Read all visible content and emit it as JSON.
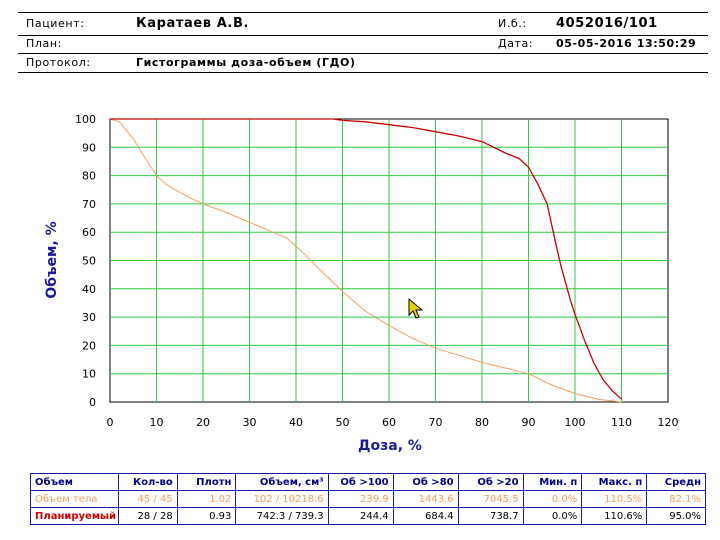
{
  "header": {
    "patient_label": "Пациент:",
    "patient_value": "Каратаев А.В.",
    "id_label": "И.б.:",
    "id_value": "4052016/101",
    "plan_label": "План:",
    "date_label": "Дата:",
    "date_value": "05-05-2016 13:50:29",
    "protocol_label": "Протокол:",
    "protocol_value": "Гистограммы доза-объем (ГДО)"
  },
  "chart_data": {
    "type": "line",
    "xlabel": "Доза, %",
    "ylabel": "Объем, %",
    "xlim": [
      0,
      120
    ],
    "ylim": [
      0,
      100
    ],
    "xticks": [
      0,
      10,
      20,
      30,
      40,
      50,
      60,
      70,
      80,
      90,
      100,
      110,
      120
    ],
    "yticks": [
      0,
      10,
      20,
      30,
      40,
      50,
      60,
      70,
      80,
      90,
      100
    ],
    "grid": true,
    "series": [
      {
        "color": "#f2a060",
        "x": [
          0,
          2,
          5,
          8,
          10,
          12,
          15,
          18,
          20,
          25,
          30,
          35,
          38,
          40,
          42,
          45,
          50,
          55,
          60,
          65,
          70,
          75,
          80,
          85,
          90,
          95,
          100,
          105,
          110
        ],
        "y": [
          100,
          99,
          93,
          85,
          80,
          77,
          74,
          71.5,
          70,
          67,
          63.5,
          60,
          58,
          55,
          52,
          47,
          39,
          32,
          27,
          22.5,
          19,
          16.5,
          14,
          12,
          10,
          6,
          3,
          1,
          0
        ]
      },
      {
        "color": "#cc0000",
        "x": [
          0,
          10,
          20,
          30,
          40,
          48,
          50,
          55,
          60,
          65,
          70,
          75,
          80,
          85,
          88,
          90,
          92,
          94,
          96,
          97,
          98,
          99,
          100,
          102,
          104,
          106,
          108,
          110
        ],
        "y": [
          100,
          100,
          100,
          100,
          100,
          100,
          99.5,
          99,
          98,
          97,
          95.5,
          94,
          92,
          88,
          86,
          83,
          77,
          70,
          55,
          48,
          42,
          36,
          31,
          22,
          14,
          8,
          4,
          1
        ]
      }
    ]
  },
  "table": {
    "headers": [
      "Объем",
      "Кол-во",
      "Плотн",
      "Объем, см³",
      "Об >100",
      "Об >80",
      "Об >20",
      "Мин. п",
      "Макс. п",
      "Средн"
    ],
    "rows": [
      [
        "Объем тела",
        "45 / 45",
        "1.02",
        "102 / 10218.6",
        "239.9",
        "1443.6",
        "7045.5",
        "0.0%",
        "110.5%",
        "82.1%"
      ],
      [
        "Планируемый",
        "28 / 28",
        "0.93",
        "742.3 / 739.3",
        "244.4",
        "684.4",
        "738.7",
        "0.0%",
        "110.6%",
        "95.0%"
      ]
    ]
  }
}
